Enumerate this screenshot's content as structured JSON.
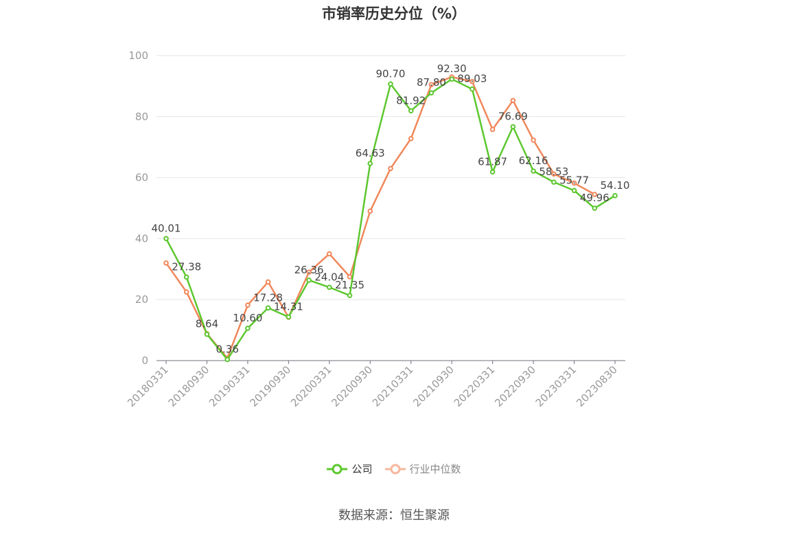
{
  "chart_data": {
    "type": "line",
    "title": "市销率历史分位（%）",
    "x": [
      "20180331",
      "20180630",
      "20180930",
      "20181231",
      "20190331",
      "20190630",
      "20190930",
      "20191231",
      "20200331",
      "20200630",
      "20200930",
      "20201231",
      "20210331",
      "20210630",
      "20210930",
      "20211231",
      "20220331",
      "20220630",
      "20220930",
      "20221231",
      "20230331",
      "20230630",
      "20230830"
    ],
    "x_tick_labels": [
      "20180331",
      "20180930",
      "20190331",
      "20190930",
      "20200331",
      "20200930",
      "20210331",
      "20210930",
      "20220331",
      "20220930",
      "20230331",
      "20230830"
    ],
    "ylim": [
      0,
      100
    ],
    "y_ticks": [
      0,
      20,
      40,
      60,
      80,
      100
    ],
    "grid": true,
    "legend_position": "bottom",
    "series": [
      {
        "name": "公司",
        "color": "#5cc72e",
        "values": [
          40.01,
          27.38,
          8.64,
          0.36,
          10.6,
          17.28,
          14.31,
          26.36,
          24.04,
          21.35,
          64.63,
          90.7,
          81.92,
          87.8,
          92.3,
          89.03,
          61.87,
          76.69,
          62.16,
          58.53,
          55.77,
          49.96,
          54.1
        ],
        "labels": [
          "40.01",
          "27.38",
          "8.64",
          "0.36",
          "10.60",
          "17.28",
          "14.31",
          "26.36",
          "24.04",
          "21.35",
          "64.63",
          "90.70",
          "81.92",
          "87.80",
          "92.30",
          "89.03",
          "61.87",
          "76.69",
          "62.16",
          "58.53",
          "55.77",
          "49.96",
          "54.10"
        ]
      },
      {
        "name": "行业中位数",
        "color": "#f0875a",
        "values": [
          32.0,
          22.5,
          8.8,
          0.8,
          18.2,
          25.8,
          14.2,
          29.0,
          35.0,
          27.5,
          49.0,
          63.0,
          72.8,
          90.5,
          93.0,
          91.5,
          75.8,
          85.3,
          72.3,
          61.2,
          58.2,
          54.5,
          null
        ]
      }
    ],
    "legend_items": [
      "公司",
      "行业中位数"
    ]
  },
  "source_text": "数据来源：恒生聚源"
}
